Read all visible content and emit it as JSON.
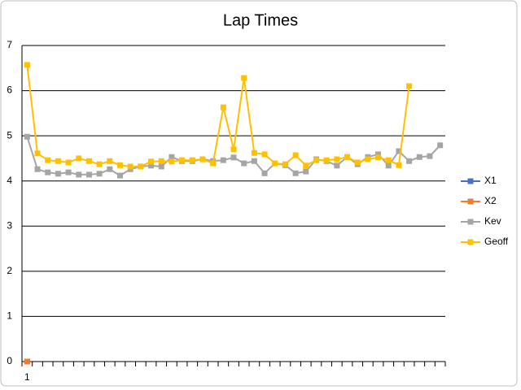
{
  "chart_data": {
    "type": "line",
    "title": "Lap Times",
    "categories": [
      "1",
      null,
      null,
      null,
      null,
      null,
      null,
      null,
      null,
      null,
      null,
      null,
      null,
      null,
      null,
      null,
      null,
      null,
      null,
      null,
      null,
      null,
      null,
      null,
      null,
      null,
      null,
      null,
      null,
      null,
      null,
      null,
      null,
      null,
      null,
      null,
      null,
      null,
      null,
      null,
      null
    ],
    "series": [
      {
        "name": "X1",
        "color": "#4472c4",
        "values": [
          0,
          null,
          null,
          null,
          null,
          null,
          null,
          null,
          null,
          null,
          null,
          null,
          null,
          null,
          null,
          null,
          null,
          null,
          null,
          null,
          null,
          null,
          null,
          null,
          null,
          null,
          null,
          null,
          null,
          null,
          null,
          null,
          null,
          null,
          null,
          null,
          null,
          null,
          null,
          null,
          null
        ]
      },
      {
        "name": "X2",
        "color": "#ed7d31",
        "values": [
          0,
          null,
          null,
          null,
          null,
          null,
          null,
          null,
          null,
          null,
          null,
          null,
          null,
          null,
          null,
          null,
          null,
          null,
          null,
          null,
          null,
          null,
          null,
          null,
          null,
          null,
          null,
          null,
          null,
          null,
          null,
          null,
          null,
          null,
          null,
          null,
          null,
          null,
          null,
          null,
          null
        ]
      },
      {
        "name": "Kev",
        "color": "#a5a5a5",
        "values": [
          4.98,
          4.26,
          4.19,
          4.16,
          4.19,
          4.14,
          4.14,
          4.16,
          4.26,
          4.12,
          4.26,
          4.32,
          4.34,
          4.32,
          4.53,
          4.44,
          4.44,
          4.48,
          4.44,
          4.46,
          4.52,
          4.39,
          4.44,
          4.17,
          4.39,
          4.35,
          4.17,
          4.21,
          4.48,
          4.44,
          4.34,
          4.53,
          4.37,
          4.53,
          4.59,
          4.34,
          4.66,
          4.44,
          4.53,
          4.55,
          4.79
        ]
      },
      {
        "name": "Geoff",
        "color": "#ffc000",
        "values": [
          6.57,
          4.61,
          4.46,
          4.44,
          4.41,
          4.5,
          4.44,
          4.37,
          4.44,
          4.35,
          4.32,
          4.32,
          4.43,
          4.44,
          4.43,
          4.46,
          4.46,
          4.48,
          4.39,
          5.63,
          4.7,
          6.28,
          4.62,
          4.59,
          4.39,
          4.37,
          4.57,
          4.34,
          4.46,
          4.46,
          4.48,
          4.53,
          4.41,
          4.48,
          4.52,
          4.46,
          4.35,
          6.1,
          null,
          null,
          null
        ]
      }
    ],
    "ylim": [
      0,
      7
    ],
    "yticks": [
      0,
      1,
      2,
      3,
      4,
      5,
      6,
      7
    ],
    "grid": true,
    "legend": "right"
  }
}
